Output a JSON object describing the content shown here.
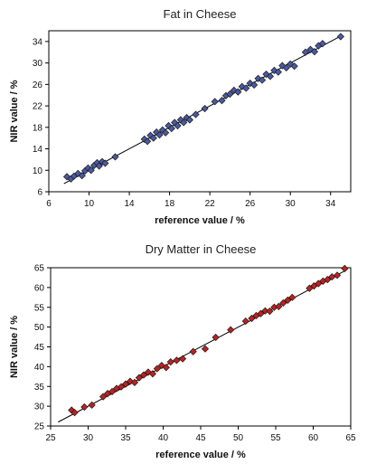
{
  "chart_data": [
    {
      "type": "scatter",
      "title": "Fat in Cheese",
      "xlabel": "reference value / %",
      "ylabel": "NIR value / %",
      "xlim": [
        6,
        36
      ],
      "ylim": [
        6,
        36
      ],
      "xticks": [
        6,
        10,
        14,
        18,
        22,
        26,
        30,
        34
      ],
      "yticks": [
        6,
        10,
        14,
        18,
        22,
        26,
        30,
        34
      ],
      "grid": false,
      "marker": "diamond",
      "marker_color": "#4a5aa0",
      "fit_line": [
        [
          7.5,
          7.5
        ],
        [
          35,
          35
        ]
      ],
      "series": [
        {
          "x": [
            7.8,
            8.2,
            8.5,
            8.9,
            9.3,
            9.6,
            9.9,
            10.2,
            10.5,
            10.8,
            11.0,
            11.3,
            11.6,
            12.6,
            15.5,
            15.8,
            16.1,
            16.4,
            16.7,
            17.0,
            17.3,
            17.6,
            17.9,
            18.2,
            18.5,
            18.8,
            19.1,
            19.4,
            19.7,
            20.0,
            20.6,
            21.5,
            22.5,
            23.2,
            23.6,
            24.0,
            24.4,
            24.8,
            25.2,
            25.6,
            26.0,
            26.4,
            26.8,
            27.2,
            27.6,
            28.0,
            28.4,
            28.8,
            29.2,
            29.6,
            30.0,
            30.4,
            31.5,
            32.0,
            32.4,
            32.8,
            33.2,
            35.0
          ],
          "y": [
            8.8,
            8.4,
            8.9,
            9.4,
            9.0,
            9.9,
            10.4,
            10.0,
            10.9,
            11.4,
            10.8,
            11.6,
            11.3,
            12.5,
            15.8,
            15.4,
            16.5,
            16.0,
            17.1,
            16.6,
            17.5,
            17.0,
            18.3,
            17.8,
            18.9,
            18.3,
            19.4,
            18.9,
            19.8,
            19.4,
            20.4,
            21.5,
            22.8,
            23.0,
            23.9,
            24.2,
            24.9,
            24.6,
            25.6,
            25.3,
            26.2,
            25.9,
            27.1,
            26.8,
            27.9,
            27.5,
            28.6,
            28.3,
            29.5,
            29.1,
            29.8,
            29.4,
            32.0,
            32.5,
            32.1,
            33.2,
            33.6,
            34.9
          ]
        }
      ]
    },
    {
      "type": "scatter",
      "title": "Dry Matter in Cheese",
      "xlabel": "reference value / %",
      "ylabel": "NIR value / %",
      "xlim": [
        25,
        65
      ],
      "ylim": [
        25,
        65
      ],
      "xticks": [
        25,
        30,
        35,
        40,
        45,
        50,
        55,
        60,
        65
      ],
      "yticks": [
        25,
        30,
        35,
        40,
        45,
        50,
        55,
        60,
        65
      ],
      "grid": false,
      "marker": "diamond",
      "marker_color": "#c02020",
      "fit_line": [
        [
          26,
          26
        ],
        [
          64.5,
          64.5
        ]
      ],
      "series": [
        {
          "x": [
            27.8,
            28.2,
            29.5,
            30.5,
            32.0,
            32.6,
            33.2,
            33.8,
            34.4,
            35.0,
            35.6,
            36.2,
            36.8,
            37.4,
            38.0,
            38.6,
            39.2,
            39.8,
            40.4,
            41.0,
            41.8,
            42.6,
            44.0,
            45.6,
            47.0,
            49.0,
            51.0,
            51.8,
            52.4,
            53.0,
            53.6,
            54.2,
            54.8,
            55.4,
            56.0,
            56.6,
            57.2,
            59.5,
            60.1,
            60.7,
            61.3,
            61.9,
            62.5,
            63.2,
            64.2
          ],
          "y": [
            29.0,
            28.4,
            29.8,
            30.3,
            32.4,
            33.2,
            33.7,
            34.5,
            34.9,
            35.6,
            36.3,
            36.0,
            37.2,
            37.9,
            38.6,
            38.2,
            39.5,
            40.3,
            39.8,
            41.2,
            41.6,
            42.0,
            43.8,
            44.5,
            47.4,
            49.3,
            51.5,
            52.2,
            52.9,
            53.4,
            54.1,
            54.0,
            55.0,
            55.2,
            56.1,
            56.8,
            57.5,
            59.8,
            60.4,
            61.0,
            61.6,
            62.0,
            62.7,
            63.1,
            64.8
          ]
        }
      ]
    }
  ]
}
